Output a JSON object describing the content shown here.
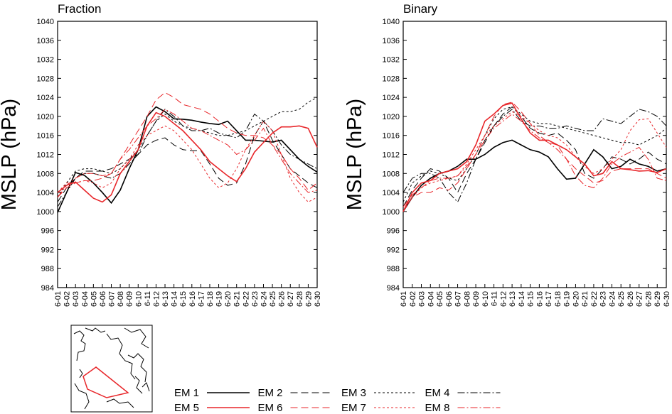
{
  "chart_data": [
    {
      "type": "line",
      "title": "Fraction",
      "y_label": "MSLP (hPa)",
      "categories": [
        "6-01",
        "6-02",
        "6-03",
        "6-04",
        "6-05",
        "6-06",
        "6-07",
        "6-08",
        "6-09",
        "6-10",
        "6-11",
        "6-12",
        "6-13",
        "6-14",
        "6-15",
        "6-16",
        "6-17",
        "6-18",
        "6-19",
        "6-20",
        "6-21",
        "6-22",
        "6-23",
        "6-24",
        "6-25",
        "6-26",
        "6-27",
        "6-28",
        "6-29",
        "6-30"
      ],
      "ylim": [
        984,
        1040
      ],
      "yticks": [
        984,
        988,
        992,
        996,
        1000,
        1004,
        1008,
        1012,
        1016,
        1020,
        1024,
        1028,
        1032,
        1036,
        1040
      ],
      "series": [
        {
          "name": "EM 1",
          "color": "#000000",
          "line_style": "solid",
          "values": [
            999.8,
            1004,
            1008.2,
            1007.6,
            1006,
            1004,
            1001.8,
            1004.5,
            1009,
            1013,
            1020,
            1022,
            1021,
            1019.5,
            1019.4,
            1019.2,
            1018.8,
            1018.5,
            1018.3,
            1019,
            1017,
            1015,
            1015,
            1014.8,
            1014.6,
            1015,
            1013,
            1011,
            1009.5,
            1008.3
          ]
        },
        {
          "name": "EM 2",
          "color": "#000000",
          "line_style": "dashed",
          "values": [
            1002,
            1005,
            1007,
            1008.5,
            1008.5,
            1008.5,
            1009,
            1010,
            1011,
            1012,
            1014,
            1015,
            1015.5,
            1014,
            1013,
            1012.8,
            1012.8,
            1010,
            1007,
            1005.5,
            1006,
            1010,
            1016,
            1019,
            1015,
            1012,
            1009,
            1007.5,
            1006,
            1005
          ]
        },
        {
          "name": "EM 3",
          "color": "#000000",
          "line_style": "dotted",
          "values": [
            1003,
            1006,
            1008.5,
            1009,
            1009,
            1008.5,
            1008,
            1009,
            1011,
            1013,
            1016,
            1019,
            1020.5,
            1019,
            1018,
            1017.5,
            1017,
            1016.5,
            1016,
            1016,
            1016.5,
            1017,
            1018,
            1019,
            1020,
            1021,
            1021,
            1021.5,
            1023,
            1024
          ]
        },
        {
          "name": "EM 4",
          "color": "#000000",
          "line_style": "dashdot",
          "values": [
            1001,
            1004,
            1007,
            1008,
            1008,
            1007.5,
            1007,
            1008,
            1010,
            1012,
            1016,
            1019,
            1021.5,
            1020,
            1018,
            1017,
            1017,
            1017.5,
            1016.5,
            1016,
            1015.5,
            1017,
            1020.5,
            1019,
            1017,
            1014,
            1012,
            1011,
            1010,
            1009
          ]
        },
        {
          "name": "EM 5",
          "color": "#e8262a",
          "line_style": "solid",
          "values": [
            1004,
            1005.5,
            1006.2,
            1004.5,
            1002.8,
            1002,
            1003.5,
            1008,
            1010.5,
            1013,
            1018,
            1020.8,
            1020,
            1018.5,
            1017,
            1015,
            1013,
            1010.5,
            1009,
            1007.5,
            1006.3,
            1009,
            1012.5,
            1014.5,
            1016.5,
            1017.8,
            1017.8,
            1018,
            1017.5,
            1013.5
          ]
        },
        {
          "name": "EM 6",
          "color": "#e8262a",
          "line_style": "dashed",
          "values": [
            1003,
            1005,
            1006,
            1006.5,
            1006.5,
            1007,
            1008,
            1011,
            1014,
            1017,
            1020,
            1023.5,
            1025,
            1024,
            1022.5,
            1022,
            1021.5,
            1020.5,
            1019,
            1017.5,
            1016.5,
            1016,
            1016,
            1015.5,
            1014,
            1012,
            1009,
            1007,
            1004.5,
            1006
          ]
        },
        {
          "name": "EM 7",
          "color": "#e8262a",
          "line_style": "dotted",
          "values": [
            1004,
            1006,
            1006,
            1006.5,
            1006,
            1005,
            1006,
            1009,
            1011,
            1014,
            1016,
            1017,
            1018,
            1017,
            1015,
            1013,
            1010,
            1007,
            1005,
            1006,
            1009,
            1013,
            1016,
            1019,
            1017,
            1012,
            1007,
            1004,
            1002,
            1003
          ]
        },
        {
          "name": "EM 8",
          "color": "#e8262a",
          "line_style": "dashdot",
          "values": [
            1003,
            1005.5,
            1007,
            1008,
            1008,
            1007.5,
            1008,
            1011,
            1013,
            1015.5,
            1018,
            1019.5,
            1021.5,
            1020.5,
            1019,
            1017.5,
            1017,
            1016,
            1015,
            1014,
            1012,
            1013,
            1015,
            1017.5,
            1014,
            1011,
            1008,
            1006,
            1004,
            1004.5
          ]
        }
      ]
    },
    {
      "type": "line",
      "title": "Binary",
      "y_label": "MSLP (hPa)",
      "categories": [
        "6-01",
        "6-02",
        "6-03",
        "6-04",
        "6-05",
        "6-06",
        "6-07",
        "6-08",
        "6-09",
        "6-10",
        "6-11",
        "6-12",
        "6-13",
        "6-14",
        "6-15",
        "6-16",
        "6-17",
        "6-18",
        "6-19",
        "6-20",
        "6-21",
        "6-22",
        "6-23",
        "6-24",
        "6-25",
        "6-26",
        "6-27",
        "6-28",
        "6-29",
        "6-30"
      ],
      "ylim": [
        984,
        1040
      ],
      "yticks": [
        984,
        988,
        992,
        996,
        1000,
        1004,
        1008,
        1012,
        1016,
        1020,
        1024,
        1028,
        1032,
        1036,
        1040
      ],
      "series": [
        {
          "color": "#000000",
          "line_style": "solid",
          "values": [
            1000,
            1003,
            1005.5,
            1007,
            1008,
            1008.5,
            1009.5,
            1011,
            1011,
            1012,
            1013.5,
            1014.5,
            1015,
            1014,
            1013,
            1012.5,
            1011.5,
            1009,
            1006.8,
            1007,
            1010,
            1013,
            1011.5,
            1009,
            1009.5,
            1011,
            1010,
            1009.5,
            1008.5,
            1009
          ]
        },
        {
          "color": "#000000",
          "line_style": "dashed",
          "values": [
            1001,
            1004.5,
            1007,
            1009,
            1008.5,
            1007,
            1004,
            1008,
            1011,
            1014.5,
            1018,
            1020.5,
            1022,
            1020,
            1017.5,
            1016.5,
            1016,
            1016.5,
            1015,
            1013,
            1008,
            1007,
            1009,
            1011.5,
            1011,
            1010,
            1011,
            1012.5,
            1011,
            1010
          ]
        },
        {
          "color": "#000000",
          "line_style": "dotted",
          "values": [
            1002,
            1006,
            1007.5,
            1008.5,
            1008,
            1007,
            1006.5,
            1009,
            1012,
            1016,
            1019.5,
            1021.5,
            1022,
            1020.5,
            1019,
            1018.5,
            1018.5,
            1018,
            1017.5,
            1017,
            1016.5,
            1016,
            1015.5,
            1015,
            1014.5,
            1014.5,
            1014,
            1015,
            1016,
            1017.5
          ]
        },
        {
          "color": "#000000",
          "line_style": "dashdot",
          "values": [
            1004,
            1007,
            1008,
            1008,
            1007,
            1004,
            1002,
            1006,
            1011,
            1015,
            1018,
            1020,
            1021.5,
            1019,
            1018,
            1018,
            1017.5,
            1017.5,
            1018,
            1017.5,
            1017,
            1017,
            1019.5,
            1019,
            1018.5,
            1020,
            1021.5,
            1021,
            1020,
            1018
          ]
        },
        {
          "color": "#e8262a",
          "line_style": "solid",
          "values": [
            1000,
            1004,
            1006,
            1006.5,
            1008,
            1008.5,
            1009,
            1010.5,
            1014,
            1019,
            1020.5,
            1022.3,
            1022.8,
            1019.5,
            1016.5,
            1015,
            1015,
            1014,
            1013,
            1011.5,
            1010,
            1007.5,
            1008,
            1010.5,
            1009,
            1008.8,
            1008.5,
            1008.6,
            1008.2,
            1009
          ]
        },
        {
          "color": "#e8262a",
          "line_style": "dashed",
          "values": [
            1000,
            1003,
            1004,
            1004,
            1005,
            1004.5,
            1006,
            1009,
            1012,
            1016,
            1020,
            1022.5,
            1023,
            1021,
            1018.5,
            1016,
            1014.5,
            1014,
            1011,
            1009,
            1007.5,
            1006,
            1006.5,
            1008.5,
            1009,
            1009,
            1009,
            1009,
            1008,
            1007
          ]
        },
        {
          "color": "#e8262a",
          "line_style": "dotted",
          "values": [
            1000,
            1003,
            1005,
            1006,
            1006.5,
            1007,
            1007.5,
            1010,
            1013,
            1016,
            1018,
            1019.5,
            1021,
            1020,
            1018.5,
            1017,
            1016,
            1015.5,
            1014,
            1011.5,
            1009.5,
            1008,
            1009,
            1011,
            1013,
            1017,
            1019.3,
            1019.5,
            1016.5,
            1013.5
          ]
        },
        {
          "color": "#e8262a",
          "line_style": "dashdot",
          "values": [
            1001,
            1003.5,
            1005,
            1006.5,
            1007,
            1007,
            1007.5,
            1009.5,
            1012,
            1015,
            1017.5,
            1019,
            1020.5,
            1019,
            1017,
            1015.5,
            1014.5,
            1013,
            1011,
            1007.5,
            1005.5,
            1005,
            1007,
            1010,
            1011.5,
            1012.5,
            1013.5,
            1011,
            1007,
            1006.5
          ]
        }
      ]
    }
  ]
}
